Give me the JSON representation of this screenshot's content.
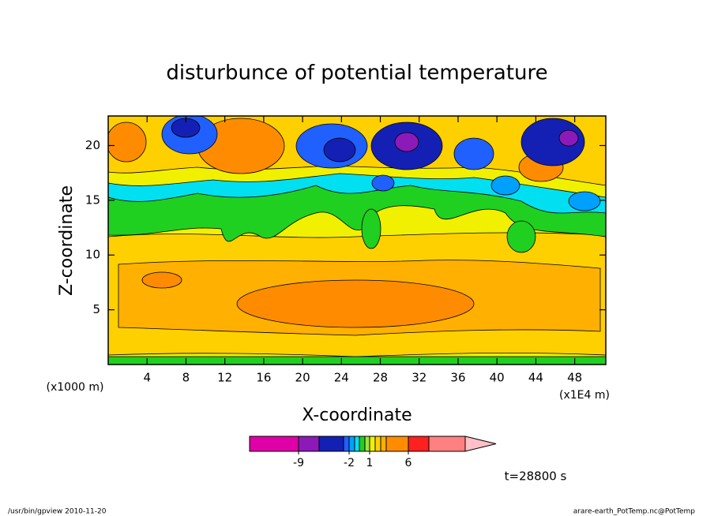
{
  "chart_data": {
    "type": "contour",
    "title": "disturbunce of potential temperature",
    "xlabel": "X-coordinate",
    "ylabel": "Z-coordinate",
    "x_unit_left": "(x1000 m)",
    "x_unit_right": "(x1E4 m)",
    "xlim": [
      0,
      51.2
    ],
    "ylim": [
      0,
      22.7
    ],
    "xticks": [
      4,
      8,
      12,
      16,
      20,
      24,
      28,
      32,
      36,
      40,
      44,
      48
    ],
    "yticks": [
      5,
      10,
      15,
      20
    ],
    "colorbar": {
      "levels": [
        -12,
        -9,
        -6,
        -3,
        -2,
        -1,
        -0.5,
        0,
        1,
        2,
        3,
        4,
        6,
        9,
        12
      ],
      "colors": [
        "#e000a8",
        "#8c1ab8",
        "#1420b4",
        "#2060ff",
        "#00a0ff",
        "#00e0f0",
        "#20d020",
        "#a0e040",
        "#f0f000",
        "#ffd000",
        "#ffb000",
        "#ff8c00",
        "#ff2020",
        "#ff8080"
      ],
      "extend_color": "#ffc0c8",
      "ticks": [
        -9,
        -2,
        1,
        6
      ]
    },
    "annotation": "t=28800 s",
    "footer_left": "/usr/bin/gpview  2010-11-20",
    "footer_right": "arare-earth_PotTemp.nc@PotTemp"
  }
}
